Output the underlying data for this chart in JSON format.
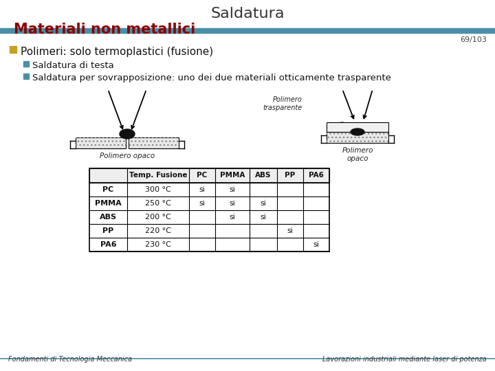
{
  "title_line1": "Saldatura",
  "title_line2": "Materiali non metallici",
  "title_line1_color": "#333333",
  "title_line2_color": "#8b0000",
  "slide_number": "69/103",
  "teal_bar_color": "#4a8fa8",
  "bullet1_text": "Polimeri: solo termoplastici (fusione)",
  "bullet1_color": "#c8a020",
  "bullet2_text": "Saldatura di testa",
  "bullet2_color": "#4a8fa8",
  "bullet3_text": "Saldatura per sovrapposizione: uno dei due materiali otticamente trasparente",
  "bullet3_color": "#4a8fa8",
  "footer_left": "Fondamenti di Tecnologia Meccanica",
  "footer_right": "Lavorazioni industriali mediante laser di potenza",
  "table_headers": [
    "",
    "Temp. Fusione",
    "PC",
    "PMMA",
    "ABS",
    "PP",
    "PA6"
  ],
  "table_rows": [
    [
      "PC",
      "300 °C",
      "si",
      "si",
      "",
      "",
      ""
    ],
    [
      "PMMA",
      "250 °C",
      "si",
      "si",
      "si",
      "",
      ""
    ],
    [
      "ABS",
      "200 °C",
      "",
      "si",
      "si",
      "",
      ""
    ],
    [
      "PP",
      "220 °C",
      "",
      "",
      "",
      "si",
      ""
    ],
    [
      "PA6",
      "230 °C",
      "",
      "",
      "",
      "",
      "si"
    ]
  ],
  "bg_color": "#ffffff"
}
